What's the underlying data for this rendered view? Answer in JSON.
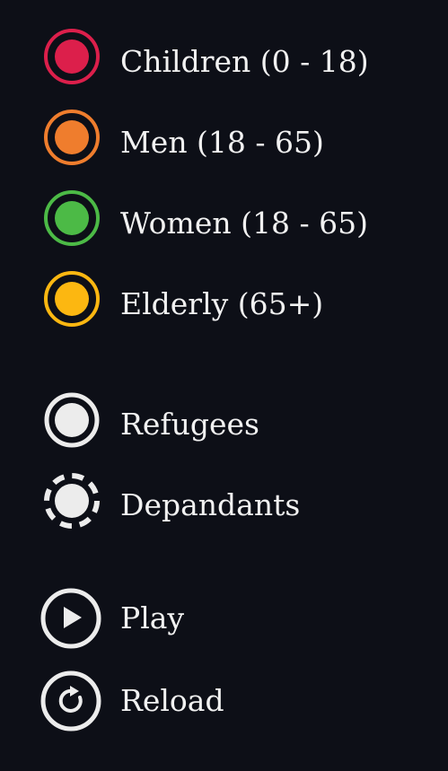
{
  "legend": {
    "age_groups": [
      {
        "label": "Children (0 - 18)",
        "icon": "children-circle-icon",
        "color": "#dc1f4b"
      },
      {
        "label": "Men (18 - 65)",
        "icon": "men-circle-icon",
        "color": "#ef7d2d"
      },
      {
        "label": "Women (18 - 65)",
        "icon": "women-circle-icon",
        "color": "#4cba46"
      },
      {
        "label": "Elderly (65+)",
        "icon": "elderly-circle-icon",
        "color": "#fcb711"
      }
    ],
    "types": [
      {
        "label": "Refugees",
        "icon": "solid-ring-icon",
        "color": "#ececec"
      },
      {
        "label": "Depandants",
        "icon": "dashed-ring-icon",
        "color": "#ececec"
      }
    ]
  },
  "controls": {
    "play_label": "Play",
    "reload_label": "Reload"
  },
  "colors": {
    "background": "#0d0f17",
    "foreground": "#ececec"
  }
}
